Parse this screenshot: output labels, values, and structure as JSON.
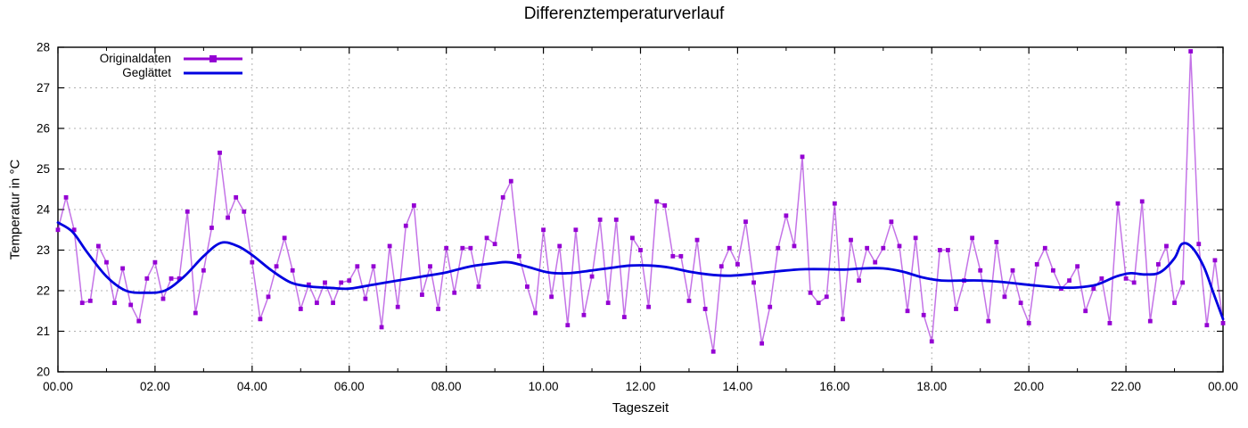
{
  "chart_data": {
    "type": "line",
    "title": "Differenztemperaturverlauf",
    "xlabel": "Tageszeit",
    "ylabel": "Temperatur in °C",
    "xlim_hours": [
      0,
      24
    ],
    "ylim": [
      20,
      28
    ],
    "x_major_tick_hours": [
      0,
      2,
      4,
      6,
      8,
      10,
      12,
      14,
      16,
      18,
      20,
      22,
      24
    ],
    "x_tick_labels": [
      "00.00",
      "02.00",
      "04.00",
      "06.00",
      "08.00",
      "10.00",
      "12.00",
      "14.00",
      "16.00",
      "18.00",
      "20.00",
      "22.00",
      "00.00"
    ],
    "y_tick_values": [
      20,
      21,
      22,
      23,
      24,
      25,
      26,
      27,
      28
    ],
    "y_tick_labels": [
      "20",
      "21",
      "22",
      "23",
      "24",
      "25",
      "26",
      "27",
      "28"
    ],
    "grid": true,
    "grid_color": "#b0b0b0",
    "legend_position": "top-left-inside",
    "series": [
      {
        "name": "Originaldaten",
        "type": "linespoints",
        "marker": "filled-square",
        "color": "#9400d3",
        "start_hour": 0,
        "interval_minutes": 10,
        "values": [
          23.5,
          24.3,
          23.5,
          21.7,
          21.75,
          23.1,
          22.7,
          21.7,
          22.55,
          21.65,
          21.25,
          22.3,
          22.7,
          21.8,
          22.3,
          22.3,
          23.95,
          21.45,
          22.5,
          23.55,
          25.4,
          23.8,
          24.3,
          23.95,
          22.7,
          21.3,
          21.85,
          22.6,
          23.3,
          22.5,
          21.55,
          22.15,
          21.7,
          22.2,
          21.7,
          22.2,
          22.25,
          22.6,
          21.8,
          22.6,
          21.1,
          23.1,
          21.6,
          23.6,
          24.1,
          21.9,
          22.6,
          21.55,
          23.05,
          21.95,
          23.05,
          23.05,
          22.1,
          23.3,
          23.15,
          24.3,
          24.7,
          22.85,
          22.1,
          21.45,
          23.5,
          21.85,
          23.1,
          21.15,
          23.5,
          21.4,
          22.35,
          23.75,
          21.7,
          23.75,
          21.35,
          23.3,
          23.0,
          21.6,
          24.2,
          24.1,
          22.85,
          22.85,
          21.75,
          23.25,
          21.55,
          20.5,
          22.6,
          23.05,
          22.65,
          23.7,
          22.2,
          20.7,
          21.6,
          23.05,
          23.85,
          23.1,
          25.3,
          21.95,
          21.7,
          21.85,
          24.15,
          21.3,
          23.25,
          22.25,
          23.05,
          22.7,
          23.05,
          23.7,
          23.1,
          21.5,
          23.3,
          21.4,
          20.75,
          23.0,
          23.0,
          21.55,
          22.25,
          23.3,
          22.5,
          21.25,
          23.2,
          21.85,
          22.5,
          21.7,
          21.2,
          22.65,
          23.05,
          22.5,
          22.05,
          22.25,
          22.6,
          21.5,
          22.05,
          22.3,
          21.2,
          24.15,
          22.3,
          22.2,
          24.2,
          21.25,
          22.65,
          23.1,
          21.7,
          22.2,
          27.9,
          23.15,
          21.15,
          22.75,
          21.2
        ]
      },
      {
        "name": "Geglättet",
        "type": "smooth-line",
        "color": "#0000e0",
        "points_hours_temp": [
          [
            0,
            23.68
          ],
          [
            0.3,
            23.45
          ],
          [
            0.6,
            22.95
          ],
          [
            1.0,
            22.35
          ],
          [
            1.4,
            22.0
          ],
          [
            1.8,
            21.95
          ],
          [
            2.2,
            22.0
          ],
          [
            2.6,
            22.35
          ],
          [
            3.0,
            22.85
          ],
          [
            3.36,
            23.18
          ],
          [
            3.7,
            23.1
          ],
          [
            4.0,
            22.88
          ],
          [
            4.4,
            22.5
          ],
          [
            4.8,
            22.2
          ],
          [
            5.2,
            22.1
          ],
          [
            5.6,
            22.07
          ],
          [
            6.0,
            22.05
          ],
          [
            6.5,
            22.15
          ],
          [
            7.0,
            22.25
          ],
          [
            7.5,
            22.35
          ],
          [
            8.0,
            22.45
          ],
          [
            8.5,
            22.6
          ],
          [
            9.0,
            22.68
          ],
          [
            9.3,
            22.7
          ],
          [
            9.7,
            22.58
          ],
          [
            10.1,
            22.45
          ],
          [
            10.5,
            22.43
          ],
          [
            11.0,
            22.5
          ],
          [
            11.5,
            22.58
          ],
          [
            11.8,
            22.62
          ],
          [
            12.2,
            22.62
          ],
          [
            12.6,
            22.57
          ],
          [
            13.0,
            22.47
          ],
          [
            13.4,
            22.4
          ],
          [
            13.8,
            22.37
          ],
          [
            14.2,
            22.4
          ],
          [
            14.6,
            22.45
          ],
          [
            15.0,
            22.5
          ],
          [
            15.4,
            22.53
          ],
          [
            15.8,
            22.53
          ],
          [
            16.2,
            22.52
          ],
          [
            16.6,
            22.55
          ],
          [
            17.0,
            22.55
          ],
          [
            17.4,
            22.47
          ],
          [
            17.8,
            22.33
          ],
          [
            18.2,
            22.25
          ],
          [
            18.6,
            22.25
          ],
          [
            19.0,
            22.25
          ],
          [
            19.4,
            22.22
          ],
          [
            19.8,
            22.17
          ],
          [
            20.2,
            22.12
          ],
          [
            20.6,
            22.08
          ],
          [
            21.0,
            22.08
          ],
          [
            21.4,
            22.15
          ],
          [
            21.8,
            22.35
          ],
          [
            22.1,
            22.43
          ],
          [
            22.4,
            22.4
          ],
          [
            22.7,
            22.45
          ],
          [
            23.0,
            22.8
          ],
          [
            23.15,
            23.15
          ],
          [
            23.35,
            23.08
          ],
          [
            23.6,
            22.6
          ],
          [
            23.8,
            21.95
          ],
          [
            24.0,
            21.3
          ]
        ]
      }
    ]
  }
}
